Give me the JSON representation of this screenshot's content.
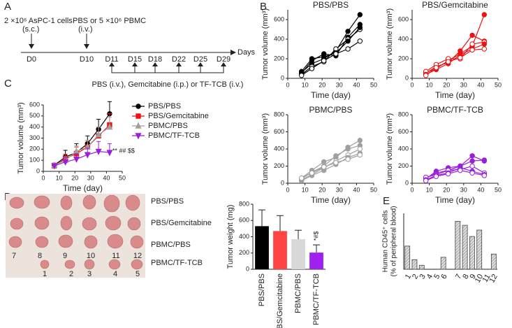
{
  "panel_labels": [
    "A",
    "B",
    "C",
    "D",
    "E"
  ],
  "timeline": {
    "cells": "2 ×10⁶ AsPC-1 cells",
    "cells_route": "(s.c.)",
    "pbmc": "PBS or 5 ×10⁶ PBMC",
    "pbmc_route": "(i.v.)",
    "days": [
      "D0",
      "D10",
      "D11",
      "D15",
      "D18",
      "D22",
      "D25",
      "D29"
    ],
    "axis_label": "Days",
    "treatment": "PBS (i.v.), Gemcitabine (i.p.) or TF-TCB (i.v.)"
  },
  "photo": {
    "row_labels": [
      "PBS/PBS",
      "PBS/Gemcitabine",
      "PBMC/PBS",
      "PBMC/TF-TCB"
    ],
    "numbers_row3": [
      "7",
      "8",
      "9",
      "10",
      "11",
      "12"
    ],
    "numbers_row4": [
      "1",
      "2",
      "3",
      "4",
      "5"
    ]
  },
  "chart_data": [
    {
      "type": "line",
      "title": "PBS/PBS",
      "xlabel": "Time (day)",
      "ylabel": "Tumor volume (mm³)",
      "x": [
        8,
        14,
        21,
        28,
        35,
        42
      ],
      "xlim": [
        0,
        50
      ],
      "xticks": [
        0,
        10,
        20,
        30,
        40,
        50
      ],
      "ylim": [
        0,
        700
      ],
      "yticks": [
        0,
        200,
        400,
        600
      ],
      "series": [
        {
          "color": "#000000",
          "values": [
            60,
            150,
            200,
            280,
            480,
            650
          ]
        },
        {
          "color": "#000000",
          "values": [
            50,
            180,
            250,
            230,
            420,
            550
          ]
        },
        {
          "color": "#000000",
          "values": [
            40,
            120,
            170,
            300,
            400,
            500
          ]
        },
        {
          "color": "#000000",
          "values": [
            70,
            200,
            220,
            260,
            380,
            520
          ]
        },
        {
          "color": "#000000",
          "values": [
            30,
            100,
            180,
            250,
            300,
            380
          ]
        }
      ]
    },
    {
      "type": "line",
      "title": "PBS/Gemcitabine",
      "xlabel": "Time (day)",
      "ylabel": "Tumor volume (mm³)",
      "x": [
        8,
        14,
        21,
        28,
        35,
        42
      ],
      "xlim": [
        0,
        50
      ],
      "xticks": [
        0,
        10,
        20,
        30,
        40,
        50
      ],
      "ylim": [
        0,
        700
      ],
      "yticks": [
        0,
        200,
        400,
        600
      ],
      "series": [
        {
          "color": "#ee1111",
          "values": [
            60,
            100,
            180,
            250,
            330,
            650
          ]
        },
        {
          "color": "#ee1111",
          "values": [
            50,
            120,
            160,
            280,
            440,
            380
          ]
        },
        {
          "color": "#ee1111",
          "values": [
            70,
            140,
            200,
            200,
            350,
            370
          ]
        },
        {
          "color": "#ee1111",
          "values": [
            40,
            90,
            150,
            240,
            300,
            350
          ]
        },
        {
          "color": "#ee1111",
          "values": [
            30,
            110,
            170,
            210,
            290,
            300
          ]
        }
      ]
    },
    {
      "type": "line",
      "title": "PBMC/PBS",
      "xlabel": "Time (day)",
      "ylabel": "Tumor volume (mm³)",
      "x": [
        8,
        14,
        21,
        28,
        35,
        42
      ],
      "xlim": [
        0,
        50
      ],
      "xticks": [
        0,
        10,
        20,
        30,
        40,
        50
      ],
      "ylim": [
        0,
        800
      ],
      "yticks": [
        0,
        200,
        400,
        600,
        800
      ],
      "series": [
        {
          "color": "#a0a0a0",
          "values": [
            60,
            150,
            250,
            300,
            420,
            500
          ]
        },
        {
          "color": "#a0a0a0",
          "values": [
            50,
            130,
            200,
            320,
            400,
            440
          ]
        },
        {
          "color": "#a0a0a0",
          "values": [
            40,
            100,
            180,
            260,
            330,
            400
          ]
        },
        {
          "color": "#a0a0a0",
          "values": [
            30,
            90,
            150,
            220,
            300,
            350
          ]
        },
        {
          "color": "#a0a0a0",
          "values": [
            60,
            120,
            190,
            240,
            280,
            330
          ]
        }
      ]
    },
    {
      "type": "line",
      "title": "PBMC/TF-TCB",
      "xlabel": "Time (day)",
      "ylabel": "Tumor volume (mm³)",
      "x": [
        8,
        14,
        21,
        28,
        35,
        42
      ],
      "xlim": [
        0,
        50
      ],
      "xticks": [
        0,
        10,
        20,
        30,
        40,
        50
      ],
      "ylim": [
        0,
        800
      ],
      "yticks": [
        0,
        200,
        400,
        600,
        800
      ],
      "series": [
        {
          "color": "#9b1fd6",
          "values": [
            60,
            120,
            150,
            200,
            320,
            260
          ]
        },
        {
          "color": "#9b1fd6",
          "values": [
            50,
            140,
            180,
            200,
            260,
            270
          ]
        },
        {
          "color": "#9b1fd6",
          "values": [
            70,
            100,
            150,
            160,
            200,
            120
          ]
        },
        {
          "color": "#9b1fd6",
          "values": [
            40,
            90,
            120,
            180,
            140,
            100
          ]
        },
        {
          "color": "#9b1fd6",
          "values": [
            30,
            80,
            110,
            150,
            120,
            90
          ]
        }
      ]
    },
    {
      "type": "line",
      "xlabel": "Time (day)",
      "ylabel": "Tumor volume (mm³)",
      "legend": "right",
      "annotation": "** ## $$",
      "x": [
        7,
        14,
        21,
        28,
        35,
        42
      ],
      "xlim": [
        0,
        50
      ],
      "xticks": [
        0,
        10,
        20,
        30,
        40,
        50
      ],
      "ylim": [
        0,
        600
      ],
      "yticks": [
        0,
        100,
        200,
        300,
        400,
        500,
        600
      ],
      "series": [
        {
          "name": "PBS/PBS",
          "color": "#000000",
          "marker": "circle",
          "values": [
            55,
            130,
            170,
            250,
            380,
            520
          ],
          "errors": [
            20,
            60,
            80,
            70,
            90,
            110
          ]
        },
        {
          "name": "PBS/Gemcitabine",
          "color": "#ee1111",
          "marker": "square",
          "values": [
            50,
            115,
            160,
            220,
            320,
            420
          ],
          "errors": [
            20,
            40,
            60,
            60,
            80,
            100
          ]
        },
        {
          "name": "PBMC/PBS",
          "color": "#a0a0a0",
          "marker": "triangle",
          "values": [
            55,
            100,
            180,
            220,
            330,
            400
          ],
          "errors": [
            20,
            30,
            50,
            60,
            70,
            90
          ]
        },
        {
          "name": "PBMC/TF-TCB",
          "color": "#9b1fd6",
          "marker": "triangle-down",
          "values": [
            50,
            85,
            110,
            150,
            180,
            170
          ],
          "errors": [
            15,
            40,
            50,
            60,
            90,
            80
          ]
        }
      ]
    },
    {
      "type": "bar",
      "ylabel": "Tumor weight (mg)",
      "annotation": "*#$",
      "categories": [
        "PBS/PBS",
        "PBS/Gemcitabine",
        "PBMC/PBS",
        "PBMC/TF-TCB"
      ],
      "values": [
        530,
        470,
        370,
        205
      ],
      "errors": [
        200,
        190,
        110,
        95
      ],
      "colors": [
        "#000000",
        "#ff4444",
        "#d8d8d8",
        "#a020f0"
      ],
      "ylim": [
        0,
        800
      ],
      "yticks": [
        0,
        200,
        400,
        600,
        800
      ]
    },
    {
      "type": "bar",
      "ylabel_lines": [
        "Human CD45⁺ cells",
        "(% of peripheral blood)"
      ],
      "categories": [
        "1",
        "2",
        "3",
        "4",
        "5",
        "6",
        "7",
        "8",
        "9",
        "10",
        "11",
        "12"
      ],
      "values": [
        29,
        12,
        5,
        0,
        0,
        15,
        60,
        55,
        41,
        49,
        0,
        19
      ],
      "color": "#bbbbbb",
      "ylim": [
        0,
        70
      ]
    }
  ]
}
